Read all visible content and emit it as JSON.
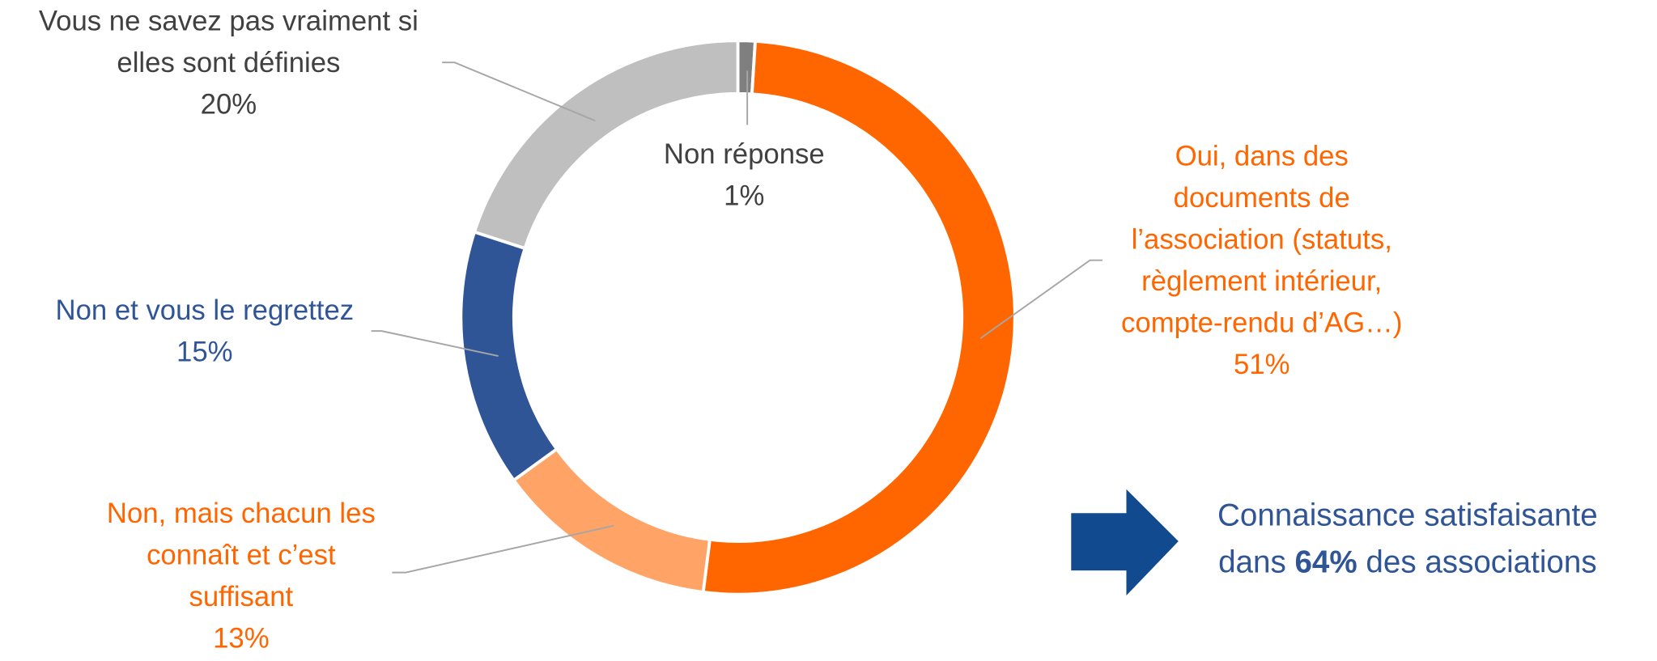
{
  "chart_data": {
    "type": "donut",
    "categories": [
      [
        "Non réponse"
      ],
      [
        "Oui, dans des",
        "documents de",
        "l’association (statuts,",
        "règlement intérieur,",
        "compte-rendu d’AG…)"
      ],
      [
        "Non, mais chacun les",
        "connaît et c’est",
        "suffisant"
      ],
      [
        "Non et vous le regrettez"
      ],
      [
        "Vous ne savez pas vraiment si",
        "elles sont définies"
      ]
    ],
    "values": [
      1,
      51,
      13,
      15,
      20
    ],
    "value_labels": [
      "1%",
      "51%",
      "13%",
      "15%",
      "20%"
    ],
    "colors": [
      "#7f7f7f",
      "#ff6600",
      "#ffa366",
      "#2f5597",
      "#bfbfbf"
    ],
    "label_colors": [
      "#404040",
      "#ff6600",
      "#ff6600",
      "#2f5597",
      "#404040"
    ],
    "annotation": {
      "line1": "Connaissance satisfaisante",
      "pre": "dans",
      "bold": "64%",
      "post": "des associations"
    }
  }
}
